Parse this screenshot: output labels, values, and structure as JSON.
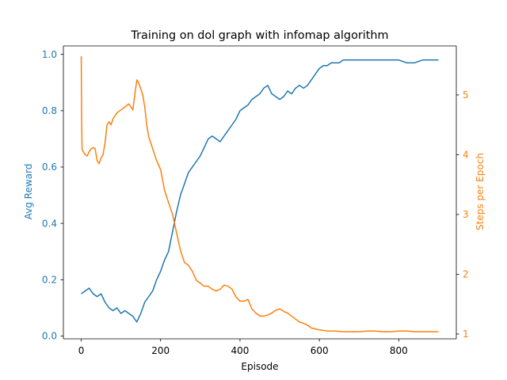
{
  "chart_data": {
    "type": "line",
    "title": "Training on dol graph with infomap algorithm",
    "xlabel": "Episode",
    "ylabel_left": "Avg Reward",
    "ylabel_right": "Steps per Epoch",
    "xlim": [
      -45,
      945
    ],
    "ylim_left": [
      -0.01,
      1.03
    ],
    "ylim_right": [
      0.92,
      5.82
    ],
    "x_ticks": [
      0,
      200,
      400,
      600,
      800
    ],
    "y_left_ticks": [
      0.0,
      0.2,
      0.4,
      0.6,
      0.8,
      1.0
    ],
    "y_right_ticks": [
      1,
      2,
      3,
      4,
      5
    ],
    "grid": false,
    "colors": {
      "left": "#1f77b4",
      "right": "#ff7f0e"
    },
    "series": [
      {
        "axis": "left",
        "x": [
          0,
          10,
          20,
          30,
          40,
          50,
          60,
          70,
          80,
          90,
          100,
          110,
          120,
          130,
          140,
          150,
          160,
          170,
          180,
          190,
          200,
          210,
          220,
          230,
          240,
          250,
          260,
          270,
          280,
          290,
          300,
          310,
          320,
          330,
          340,
          350,
          360,
          370,
          380,
          390,
          400,
          410,
          420,
          430,
          440,
          450,
          460,
          470,
          480,
          490,
          500,
          510,
          520,
          530,
          540,
          550,
          560,
          570,
          580,
          590,
          600,
          610,
          620,
          630,
          640,
          650,
          660,
          670,
          680,
          690,
          700,
          720,
          740,
          760,
          780,
          800,
          820,
          840,
          860,
          880,
          900
        ],
        "y": [
          0.15,
          0.16,
          0.17,
          0.15,
          0.14,
          0.15,
          0.12,
          0.1,
          0.09,
          0.1,
          0.08,
          0.09,
          0.08,
          0.07,
          0.05,
          0.08,
          0.12,
          0.14,
          0.16,
          0.2,
          0.23,
          0.27,
          0.3,
          0.37,
          0.44,
          0.5,
          0.54,
          0.58,
          0.6,
          0.62,
          0.64,
          0.67,
          0.7,
          0.71,
          0.7,
          0.69,
          0.71,
          0.73,
          0.75,
          0.77,
          0.8,
          0.81,
          0.82,
          0.84,
          0.85,
          0.86,
          0.88,
          0.89,
          0.86,
          0.85,
          0.84,
          0.85,
          0.87,
          0.86,
          0.88,
          0.89,
          0.88,
          0.89,
          0.91,
          0.93,
          0.95,
          0.96,
          0.96,
          0.97,
          0.97,
          0.97,
          0.98,
          0.98,
          0.98,
          0.98,
          0.98,
          0.98,
          0.98,
          0.98,
          0.98,
          0.98,
          0.97,
          0.97,
          0.98,
          0.98,
          0.98
        ]
      },
      {
        "axis": "right",
        "x": [
          0,
          1,
          2,
          5,
          10,
          15,
          20,
          25,
          30,
          35,
          40,
          45,
          50,
          55,
          60,
          65,
          70,
          75,
          80,
          90,
          100,
          110,
          120,
          130,
          135,
          140,
          145,
          150,
          155,
          160,
          165,
          170,
          180,
          190,
          200,
          210,
          220,
          230,
          240,
          250,
          260,
          270,
          280,
          290,
          300,
          310,
          320,
          330,
          340,
          350,
          360,
          370,
          380,
          390,
          400,
          410,
          420,
          430,
          440,
          450,
          460,
          470,
          480,
          490,
          500,
          510,
          520,
          530,
          540,
          550,
          560,
          570,
          580,
          600,
          620,
          640,
          660,
          680,
          700,
          720,
          740,
          760,
          780,
          800,
          820,
          840,
          860,
          880,
          900
        ],
        "y": [
          5.65,
          4.6,
          4.1,
          4.05,
          4.0,
          3.98,
          4.05,
          4.1,
          4.12,
          4.1,
          3.9,
          3.85,
          3.95,
          4.0,
          4.2,
          4.5,
          4.55,
          4.5,
          4.6,
          4.7,
          4.75,
          4.8,
          4.85,
          4.75,
          5.0,
          5.25,
          5.2,
          5.1,
          5.0,
          4.8,
          4.5,
          4.3,
          4.1,
          3.9,
          3.75,
          3.4,
          3.2,
          3.0,
          2.7,
          2.4,
          2.2,
          2.15,
          2.05,
          1.9,
          1.85,
          1.8,
          1.8,
          1.75,
          1.72,
          1.75,
          1.82,
          1.8,
          1.75,
          1.62,
          1.55,
          1.55,
          1.58,
          1.42,
          1.35,
          1.3,
          1.3,
          1.32,
          1.35,
          1.4,
          1.42,
          1.38,
          1.35,
          1.3,
          1.25,
          1.2,
          1.18,
          1.15,
          1.1,
          1.07,
          1.05,
          1.05,
          1.04,
          1.04,
          1.04,
          1.05,
          1.05,
          1.04,
          1.04,
          1.05,
          1.05,
          1.04,
          1.04,
          1.04,
          1.04
        ]
      }
    ]
  }
}
